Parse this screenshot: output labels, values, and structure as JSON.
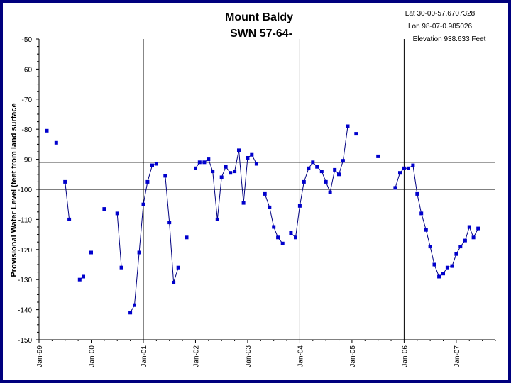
{
  "chart_data": {
    "type": "line",
    "title": "Mount Baldy",
    "subtitle": "SWN 57-64-",
    "info": [
      "Lat 30-00-57.6707328",
      "Lon 98-07-0.985026",
      "Elevation 938.633 Feet"
    ],
    "ylabel": "Provisional Water Level (feet from land surface",
    "xlabel": "",
    "ylim": [
      -150,
      -50
    ],
    "yticks": [
      -50,
      -60,
      -70,
      -80,
      -90,
      -100,
      -110,
      -120,
      -130,
      -140,
      -150
    ],
    "xlim": [
      1999.0,
      2007.75
    ],
    "xticks": [
      {
        "label": "Jan-99",
        "x": 1999.0
      },
      {
        "label": "Jan-00",
        "x": 2000.0
      },
      {
        "label": "Jan-01",
        "x": 2001.0
      },
      {
        "label": "Jan-02",
        "x": 2002.0
      },
      {
        "label": "Jan-03",
        "x": 2003.0
      },
      {
        "label": "Jan-04",
        "x": 2004.0
      },
      {
        "label": "Jan-05",
        "x": 2005.0
      },
      {
        "label": "Jan-06",
        "x": 2006.0
      },
      {
        "label": "Jan-07",
        "x": 2007.0
      }
    ],
    "hlines": [
      -91,
      -100
    ],
    "vlines": [
      2001.0,
      2004.0,
      2006.0
    ],
    "line_color": "#000080",
    "marker_color": "#0000cc",
    "segments": [
      [
        [
          1999.15,
          -80.5
        ]
      ],
      [
        [
          1999.33,
          -84.5
        ]
      ],
      [
        [
          1999.5,
          -97.5
        ],
        [
          1999.58,
          -110.0
        ]
      ],
      [
        [
          1999.78,
          -130.0
        ],
        [
          1999.85,
          -129.0
        ]
      ],
      [
        [
          2000.0,
          -121.0
        ]
      ],
      [
        [
          2000.25,
          -106.5
        ]
      ],
      [
        [
          2000.5,
          -108.0
        ],
        [
          2000.58,
          -126.0
        ]
      ],
      [
        [
          2000.75,
          -141.0
        ],
        [
          2000.83,
          -138.5
        ],
        [
          2000.92,
          -121.0
        ],
        [
          2001.0,
          -105.0
        ],
        [
          2001.08,
          -97.5
        ],
        [
          2001.17,
          -92.0
        ],
        [
          2001.25,
          -91.5
        ]
      ],
      [
        [
          2001.42,
          -95.5
        ],
        [
          2001.5,
          -111.0
        ],
        [
          2001.58,
          -131.0
        ],
        [
          2001.67,
          -126.0
        ]
      ],
      [
        [
          2001.83,
          -116.0
        ]
      ],
      [
        [
          2002.0,
          -93.0
        ],
        [
          2002.08,
          -91.0
        ],
        [
          2002.17,
          -91.0
        ],
        [
          2002.25,
          -90.0
        ],
        [
          2002.33,
          -94.0
        ],
        [
          2002.42,
          -110.0
        ],
        [
          2002.5,
          -96.0
        ],
        [
          2002.58,
          -92.5
        ],
        [
          2002.67,
          -94.5
        ],
        [
          2002.75,
          -94.0
        ],
        [
          2002.83,
          -87.0
        ],
        [
          2002.92,
          -104.5
        ],
        [
          2003.0,
          -89.5
        ],
        [
          2003.08,
          -88.5
        ],
        [
          2003.17,
          -91.5
        ]
      ],
      [
        [
          2003.33,
          -101.5
        ],
        [
          2003.42,
          -106.0
        ],
        [
          2003.5,
          -112.5
        ],
        [
          2003.58,
          -116.0
        ],
        [
          2003.67,
          -118.0
        ]
      ],
      [
        [
          2003.83,
          -114.5
        ],
        [
          2003.92,
          -116.0
        ],
        [
          2004.0,
          -105.5
        ],
        [
          2004.08,
          -97.5
        ],
        [
          2004.17,
          -93.0
        ],
        [
          2004.25,
          -91.0
        ],
        [
          2004.33,
          -92.5
        ],
        [
          2004.42,
          -94.0
        ],
        [
          2004.5,
          -97.5
        ],
        [
          2004.58,
          -101.0
        ],
        [
          2004.67,
          -93.5
        ],
        [
          2004.75,
          -95.0
        ],
        [
          2004.83,
          -90.5
        ],
        [
          2004.92,
          -79.0
        ]
      ],
      [
        [
          2005.08,
          -81.5
        ]
      ],
      [
        [
          2005.5,
          -89.0
        ]
      ],
      [
        [
          2005.83,
          -99.5
        ],
        [
          2005.92,
          -94.5
        ],
        [
          2006.0,
          -93.0
        ],
        [
          2006.08,
          -93.0
        ],
        [
          2006.17,
          -92.0
        ],
        [
          2006.25,
          -101.5
        ],
        [
          2006.33,
          -108.0
        ],
        [
          2006.42,
          -113.5
        ],
        [
          2006.5,
          -119.0
        ],
        [
          2006.58,
          -125.0
        ],
        [
          2006.67,
          -129.0
        ],
        [
          2006.75,
          -128.0
        ],
        [
          2006.83,
          -126.0
        ],
        [
          2006.92,
          -125.5
        ],
        [
          2007.0,
          -121.5
        ],
        [
          2007.08,
          -119.0
        ],
        [
          2007.17,
          -117.0
        ],
        [
          2007.25,
          -112.5
        ],
        [
          2007.33,
          -116.0
        ],
        [
          2007.42,
          -113.0
        ]
      ]
    ]
  }
}
